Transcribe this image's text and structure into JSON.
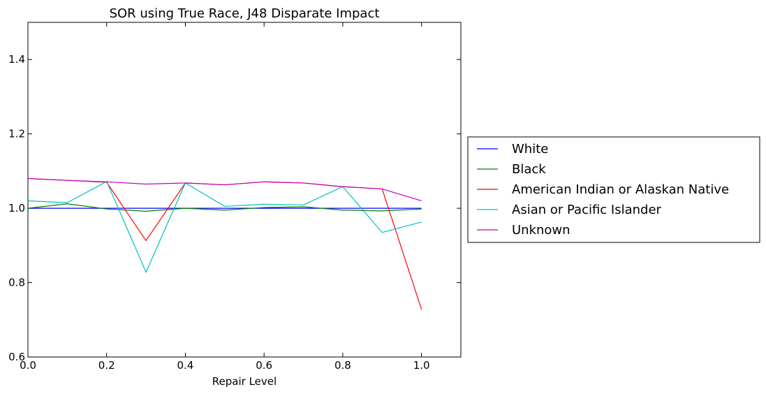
{
  "chart_data": {
    "type": "line",
    "title": "SOR using True Race, J48 Disparate Impact",
    "xlabel": "Repair Level",
    "ylabel": "",
    "xlim": [
      0.0,
      1.1
    ],
    "ylim": [
      0.6,
      1.5
    ],
    "x_ticks": [
      "0.0",
      "0.2",
      "0.4",
      "0.6",
      "0.8",
      "1.0"
    ],
    "y_ticks": [
      "0.6",
      "0.8",
      "1.0",
      "1.2",
      "1.4"
    ],
    "grid": false,
    "legend_position": "right",
    "x": [
      0.0,
      0.1,
      0.2,
      0.3,
      0.4,
      0.5,
      0.6,
      0.7,
      0.8,
      0.9,
      1.0
    ],
    "series": [
      {
        "name": "White",
        "color": "#0000ff",
        "values": [
          1.0,
          1.0,
          1.0,
          1.0,
          1.0,
          1.0,
          1.0,
          1.0,
          1.0,
          1.0,
          1.0
        ]
      },
      {
        "name": "Black",
        "color": "#008000",
        "values": [
          1.0,
          1.012,
          0.998,
          0.992,
          1.0,
          0.995,
          1.002,
          1.004,
          0.995,
          0.993,
          0.998
        ]
      },
      {
        "name": "American Indian or Alaskan Native",
        "color": "#ff0000",
        "values": [
          1.08,
          1.075,
          1.07,
          0.913,
          1.068,
          1.063,
          1.071,
          1.068,
          1.058,
          1.052,
          0.728
        ]
      },
      {
        "name": "Asian or Pacific Islander",
        "color": "#00bfbf",
        "values": [
          1.02,
          1.015,
          1.072,
          0.828,
          1.068,
          1.005,
          1.011,
          1.009,
          1.058,
          0.935,
          0.963
        ]
      },
      {
        "name": "Unknown",
        "color": "#bf00bf",
        "values": [
          1.08,
          1.075,
          1.071,
          1.065,
          1.068,
          1.063,
          1.071,
          1.068,
          1.058,
          1.052,
          1.02
        ]
      }
    ]
  }
}
